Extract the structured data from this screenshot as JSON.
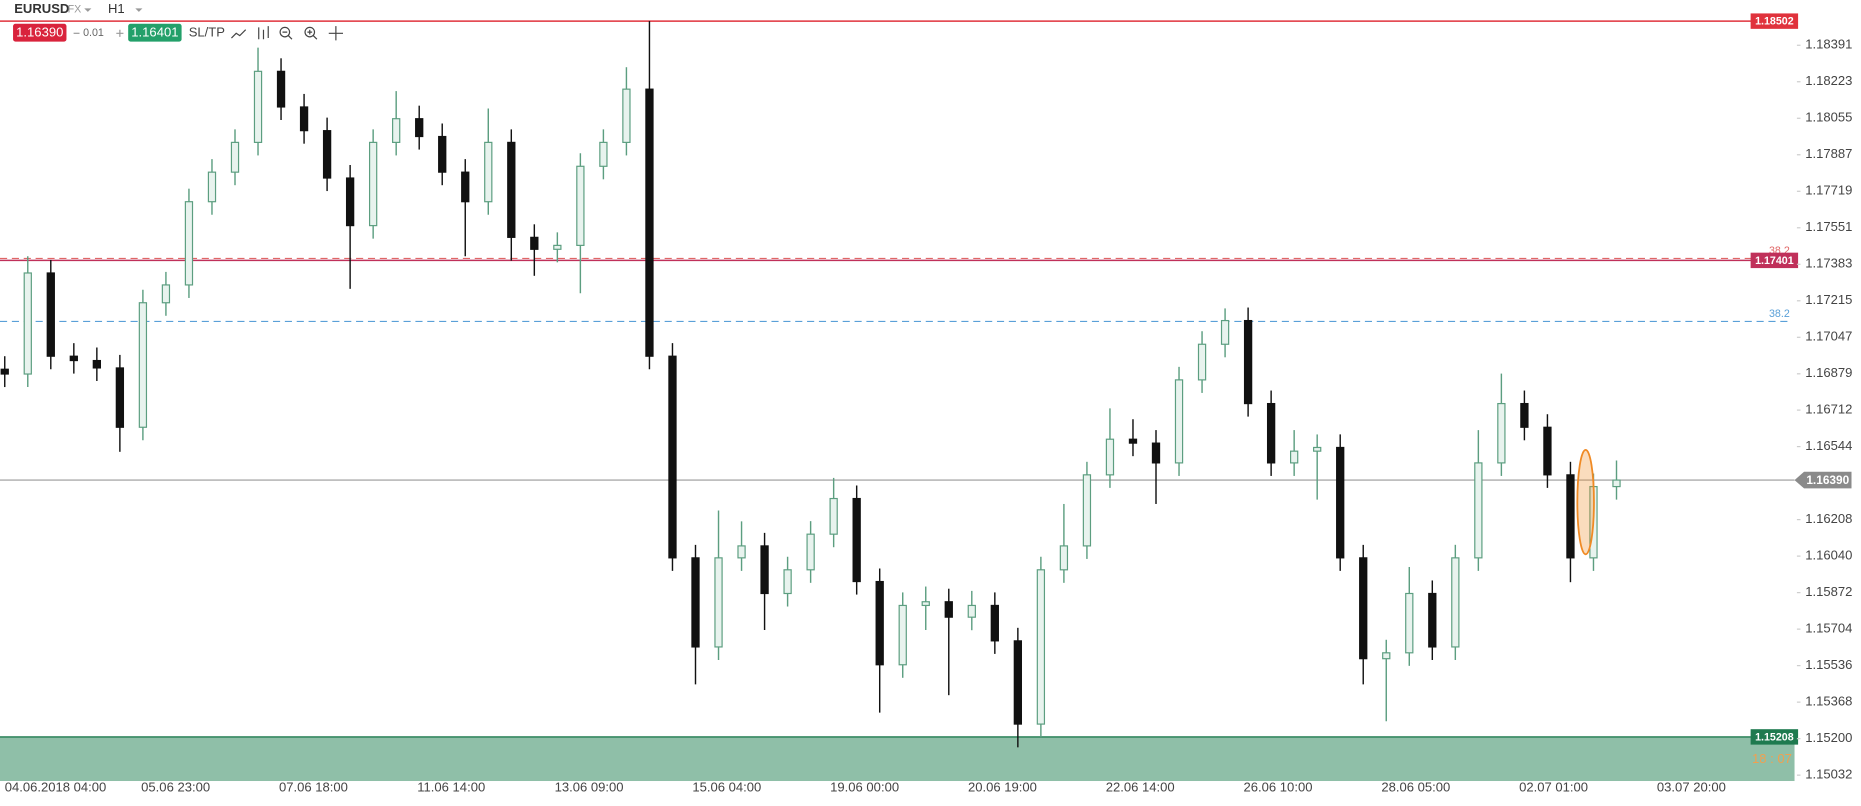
{
  "toolbar": {
    "symbol": "EURUSD",
    "market": "FX",
    "timeframe": "H1",
    "bid": "1.16390",
    "lot": "0.01",
    "ask": "1.16401",
    "sltp": "SL/TP"
  },
  "chart_data": {
    "type": "candlestick",
    "up_color": "#5c9e80",
    "down_color": "#111111",
    "ylim": [
      1.15005,
      1.18599
    ],
    "yticks": [
      1.18391,
      1.18223,
      1.18055,
      1.17887,
      1.17719,
      1.17551,
      1.17383,
      1.17215,
      1.17047,
      1.16879,
      1.16712,
      1.16544,
      1.16208,
      {
        "value": 1.1604,
        "label": "1.16040"
      },
      1.15872,
      1.15704,
      1.15536,
      1.15368,
      {
        "value": 1.152,
        "label": "1.15200"
      },
      1.15032
    ],
    "x_labels": [
      "04.06.2018 04:00",
      "05.06 23:00",
      "07.06 18:00",
      "11.06 14:00",
      "13.06 09:00",
      "15.06 04:00",
      "19.06 00:00",
      "20.06 19:00",
      "22.06 14:00",
      "26.06 10:00",
      "28.06 05:00",
      "02.07 01:00",
      "03.07 20:00"
    ],
    "ohlc": [
      [
        1.169,
        1.1696,
        1.16818,
        1.16878
      ],
      [
        1.16878,
        1.1742,
        1.16818,
        1.17343
      ],
      [
        1.17343,
        1.17403,
        1.169,
        1.1696
      ],
      [
        1.1696,
        1.1702,
        1.1688,
        1.1694
      ],
      [
        1.1694,
        1.17,
        1.16846,
        1.16906
      ],
      [
        1.16906,
        1.16966,
        1.1652,
        1.16633
      ],
      [
        1.16633,
        1.17266,
        1.16573,
        1.17206
      ],
      [
        1.17206,
        1.17348,
        1.17146,
        1.17288
      ],
      [
        1.17288,
        1.17731,
        1.17228,
        1.17671
      ],
      [
        1.17671,
        1.17867,
        1.17611,
        1.17807
      ],
      [
        1.17807,
        1.18004,
        1.17747,
        1.17944
      ],
      [
        1.17944,
        1.1838,
        1.17884,
        1.18271
      ],
      [
        1.18271,
        1.18331,
        1.18047,
        1.18107
      ],
      [
        1.18107,
        1.18167,
        1.17938,
        1.17998
      ],
      [
        1.17998,
        1.18058,
        1.1772,
        1.1778
      ],
      [
        1.1778,
        1.1784,
        1.1727,
        1.17561
      ],
      [
        1.17561,
        1.18004,
        1.17501,
        1.17944
      ],
      [
        1.17944,
        1.1818,
        1.17884,
        1.18053
      ],
      [
        1.18053,
        1.18113,
        1.17911,
        1.17971
      ],
      [
        1.17971,
        1.18031,
        1.17747,
        1.17807
      ],
      [
        1.17807,
        1.17867,
        1.1742,
        1.17671
      ],
      [
        1.17671,
        1.181,
        1.17611,
        1.17944
      ],
      [
        1.17944,
        1.18004,
        1.174,
        1.17507
      ],
      [
        1.17507,
        1.17567,
        1.1733,
        1.17452
      ],
      [
        1.17452,
        1.1753,
        1.17392,
        1.1747
      ],
      [
        1.1747,
        1.17894,
        1.1725,
        1.17834
      ],
      [
        1.17834,
        1.18004,
        1.17774,
        1.17944
      ],
      [
        1.17944,
        1.1829,
        1.17884,
        1.18189
      ],
      [
        1.18189,
        1.18502,
        1.169,
        1.1696
      ],
      [
        1.1696,
        1.1702,
        1.15972,
        1.16032
      ],
      [
        1.16032,
        1.16092,
        1.1545,
        1.15622
      ],
      [
        1.15622,
        1.1625,
        1.15562,
        1.16032
      ],
      [
        1.16032,
        1.162,
        1.15972,
        1.16087
      ],
      [
        1.16087,
        1.16147,
        1.157,
        1.15868
      ],
      [
        1.15868,
        1.16037,
        1.15808,
        1.15977
      ],
      [
        1.15977,
        1.16201,
        1.15917,
        1.16141
      ],
      [
        1.16141,
        1.164,
        1.16081,
        1.16305
      ],
      [
        1.16305,
        1.16365,
        1.15863,
        1.15923
      ],
      [
        1.15923,
        1.15983,
        1.1532,
        1.1554
      ],
      [
        1.1554,
        1.15873,
        1.1548,
        1.15813
      ],
      [
        1.15813,
        1.159,
        1.157,
        1.1583
      ],
      [
        1.1583,
        1.1589,
        1.154,
        1.15759
      ],
      [
        1.15759,
        1.1588,
        1.15699,
        1.15813
      ],
      [
        1.15813,
        1.15873,
        1.1559,
        1.1565
      ],
      [
        1.1565,
        1.1571,
        1.1516,
        1.15267
      ],
      [
        1.15267,
        1.16037,
        1.15207,
        1.15977
      ],
      [
        1.15977,
        1.1628,
        1.15917,
        1.16087
      ],
      [
        1.16087,
        1.16474,
        1.16027,
        1.16414
      ],
      [
        1.16414,
        1.1672,
        1.16354,
        1.16578
      ],
      [
        1.16578,
        1.1667,
        1.165,
        1.1656
      ],
      [
        1.1656,
        1.1662,
        1.1628,
        1.16469
      ],
      [
        1.16469,
        1.16911,
        1.16409,
        1.16851
      ],
      [
        1.16851,
        1.17075,
        1.16791,
        1.17015
      ],
      [
        1.17015,
        1.1718,
        1.16955,
        1.17124
      ],
      [
        1.17124,
        1.17184,
        1.16682,
        1.16742
      ],
      [
        1.16742,
        1.16802,
        1.16409,
        1.16469
      ],
      [
        1.16469,
        1.1662,
        1.16409,
        1.16523
      ],
      [
        1.16523,
        1.166,
        1.163,
        1.1654
      ],
      [
        1.1654,
        1.166,
        1.15972,
        1.16032
      ],
      [
        1.16032,
        1.16092,
        1.1545,
        1.15568
      ],
      [
        1.15568,
        1.15655,
        1.1528,
        1.15595
      ],
      [
        1.15595,
        1.1599,
        1.15535,
        1.15868
      ],
      [
        1.15868,
        1.15928,
        1.15562,
        1.15622
      ],
      [
        1.15622,
        1.16092,
        1.15562,
        1.16032
      ],
      [
        1.16032,
        1.1662,
        1.15972,
        1.16469
      ],
      [
        1.16469,
        1.1688,
        1.16409,
        1.16742
      ],
      [
        1.16742,
        1.16802,
        1.16573,
        1.16633
      ],
      [
        1.16633,
        1.16693,
        1.16354,
        1.16414
      ],
      [
        1.16414,
        1.16474,
        1.1592,
        1.16032
      ],
      [
        1.16032,
        1.1642,
        1.15972,
        1.1636
      ],
      [
        1.1636,
        1.1648,
        1.163,
        1.1639
      ]
    ],
    "price_lines": [
      {
        "value": 1.18502,
        "color": "#e0323c"
      },
      {
        "value": 1.17401,
        "color": "#c0305a"
      }
    ],
    "fib_levels": [
      {
        "value": 1.1741,
        "label": "38.2",
        "color": "#e06666"
      },
      {
        "value": 1.1712,
        "label": "38.2",
        "color": "#5aa0d8"
      }
    ],
    "current_price": {
      "value": 1.1639,
      "label": "1.16390",
      "color": "#8a8a8a"
    },
    "zone": {
      "top": 1.15208,
      "color": "#8fbfa8",
      "badge_color": "#1e7a4f"
    },
    "countdown": "18 : 07"
  }
}
